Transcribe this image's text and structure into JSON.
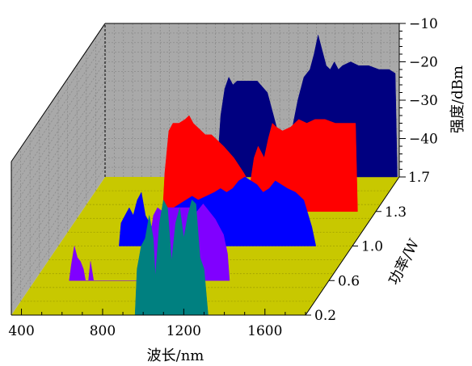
{
  "chart_data": {
    "type": "area",
    "x_axis": {
      "label": "波长/nm",
      "ticks": [
        400,
        800,
        1200,
        1600
      ],
      "range": [
        350,
        1800
      ]
    },
    "y_axis": {
      "label": "功率/W",
      "ticks": [
        "0.2",
        "0.6",
        "1.0",
        "1.3",
        "1.7"
      ]
    },
    "z_axis": {
      "label": "强度/dBm",
      "ticks": [
        "−10",
        "−20",
        "−30",
        "−40"
      ],
      "range": [
        -50,
        -10
      ]
    },
    "grid": true,
    "series": [
      {
        "power": 1.7,
        "color": "#000080",
        "points": [
          [
            900,
            -50
          ],
          [
            920,
            -34
          ],
          [
            940,
            -27
          ],
          [
            960,
            -24
          ],
          [
            980,
            -26
          ],
          [
            1000,
            -25
          ],
          [
            1050,
            -25
          ],
          [
            1100,
            -25
          ],
          [
            1150,
            -28
          ],
          [
            1180,
            -34
          ],
          [
            1210,
            -40
          ],
          [
            1240,
            -43
          ],
          [
            1270,
            -38
          ],
          [
            1300,
            -30
          ],
          [
            1330,
            -24
          ],
          [
            1360,
            -22
          ],
          [
            1380,
            -18
          ],
          [
            1400,
            -13
          ],
          [
            1420,
            -17
          ],
          [
            1440,
            -21
          ],
          [
            1460,
            -22
          ],
          [
            1480,
            -20
          ],
          [
            1500,
            -22
          ],
          [
            1520,
            -21
          ],
          [
            1560,
            -20
          ],
          [
            1600,
            -21
          ],
          [
            1650,
            -21
          ],
          [
            1700,
            -22
          ],
          [
            1750,
            -22
          ],
          [
            1780,
            -23
          ],
          [
            1790,
            -50
          ]
        ]
      },
      {
        "power": 1.3,
        "color": "#ff0000",
        "points": [
          [
            750,
            -50
          ],
          [
            760,
            -40
          ],
          [
            780,
            -29
          ],
          [
            800,
            -27
          ],
          [
            830,
            -27
          ],
          [
            860,
            -26
          ],
          [
            880,
            -25
          ],
          [
            900,
            -27
          ],
          [
            920,
            -28
          ],
          [
            940,
            -29
          ],
          [
            960,
            -30
          ],
          [
            990,
            -30
          ],
          [
            1010,
            -31
          ],
          [
            1050,
            -33
          ],
          [
            1100,
            -36
          ],
          [
            1150,
            -40
          ],
          [
            1180,
            -43
          ],
          [
            1200,
            -36
          ],
          [
            1220,
            -33
          ],
          [
            1250,
            -36
          ],
          [
            1270,
            -31
          ],
          [
            1290,
            -27
          ],
          [
            1310,
            -28
          ],
          [
            1340,
            -29
          ],
          [
            1380,
            -28
          ],
          [
            1420,
            -26
          ],
          [
            1460,
            -27
          ],
          [
            1500,
            -26
          ],
          [
            1550,
            -26
          ],
          [
            1600,
            -27
          ],
          [
            1650,
            -27
          ],
          [
            1700,
            -27
          ],
          [
            1710,
            -50
          ]
        ]
      },
      {
        "power": 1.0,
        "color": "#0000ff",
        "points": [
          [
            650,
            -50
          ],
          [
            660,
            -44
          ],
          [
            680,
            -42
          ],
          [
            700,
            -40
          ],
          [
            720,
            -42
          ],
          [
            740,
            -38
          ],
          [
            760,
            -36
          ],
          [
            780,
            -42
          ],
          [
            800,
            -44
          ],
          [
            820,
            -46
          ],
          [
            850,
            -47
          ],
          [
            860,
            -50
          ],
          [
            880,
            -50
          ],
          [
            900,
            -44
          ],
          [
            920,
            -40
          ],
          [
            950,
            -39
          ],
          [
            980,
            -38
          ],
          [
            1010,
            -37
          ],
          [
            1040,
            -38
          ],
          [
            1080,
            -37
          ],
          [
            1120,
            -36
          ],
          [
            1150,
            -35
          ],
          [
            1180,
            -36
          ],
          [
            1210,
            -35
          ],
          [
            1240,
            -33
          ],
          [
            1270,
            -32
          ],
          [
            1300,
            -33
          ],
          [
            1330,
            -34
          ],
          [
            1360,
            -36
          ],
          [
            1390,
            -35
          ],
          [
            1420,
            -33
          ],
          [
            1450,
            -34
          ],
          [
            1480,
            -35
          ],
          [
            1520,
            -36
          ],
          [
            1560,
            -38
          ],
          [
            1600,
            -45
          ],
          [
            1620,
            -50
          ]
        ]
      },
      {
        "power": 0.6,
        "color": "#8000ff",
        "points": [
          [
            520,
            -50
          ],
          [
            530,
            -46
          ],
          [
            545,
            -41
          ],
          [
            560,
            -44
          ],
          [
            575,
            -45
          ],
          [
            590,
            -47
          ],
          [
            600,
            -50
          ],
          [
            615,
            -50
          ],
          [
            625,
            -45
          ],
          [
            640,
            -50
          ],
          [
            900,
            -50
          ],
          [
            915,
            -40
          ],
          [
            935,
            -33
          ],
          [
            955,
            -31
          ],
          [
            980,
            -32
          ],
          [
            1005,
            -31
          ],
          [
            1030,
            -31
          ],
          [
            1060,
            -31
          ],
          [
            1100,
            -31
          ],
          [
            1130,
            -31
          ],
          [
            1150,
            -32
          ],
          [
            1180,
            -30
          ],
          [
            1210,
            -32
          ],
          [
            1240,
            -34
          ],
          [
            1260,
            -36
          ],
          [
            1280,
            -38
          ],
          [
            1300,
            -43
          ],
          [
            1310,
            -50
          ]
        ]
      },
      {
        "power": 0.2,
        "color": "#008080",
        "points": [
          [
            960,
            -50
          ],
          [
            970,
            -38
          ],
          [
            990,
            -32
          ],
          [
            1010,
            -30
          ],
          [
            1030,
            -24
          ],
          [
            1050,
            -30
          ],
          [
            1060,
            -40
          ],
          [
            1080,
            -26
          ],
          [
            1100,
            -20
          ],
          [
            1120,
            -22
          ],
          [
            1140,
            -36
          ],
          [
            1160,
            -26
          ],
          [
            1180,
            -22
          ],
          [
            1200,
            -30
          ],
          [
            1220,
            -24
          ],
          [
            1240,
            -20
          ],
          [
            1260,
            -21
          ],
          [
            1280,
            -35
          ],
          [
            1300,
            -38
          ],
          [
            1320,
            -50
          ]
        ]
      }
    ]
  }
}
